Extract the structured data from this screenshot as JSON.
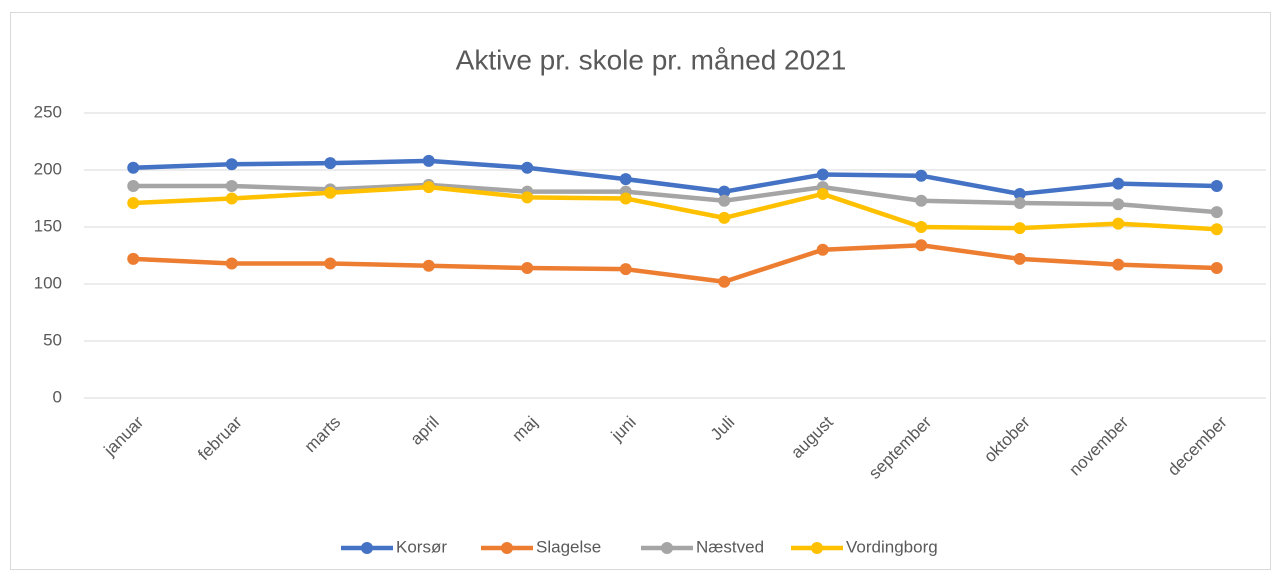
{
  "chart_data": {
    "type": "line",
    "title": "Aktive pr. skole pr. måned 2021",
    "categories": [
      "januar",
      "februar",
      "marts",
      "april",
      "maj",
      "juni",
      "Juli",
      "august",
      "september",
      "oktober",
      "november",
      "december"
    ],
    "series": [
      {
        "name": "Korsør",
        "color": "#4472c4",
        "values": [
          202,
          205,
          206,
          208,
          202,
          192,
          181,
          196,
          195,
          179,
          188,
          186
        ]
      },
      {
        "name": "Slagelse",
        "color": "#ed7d31",
        "values": [
          122,
          118,
          118,
          116,
          114,
          113,
          102,
          130,
          134,
          122,
          117,
          114
        ]
      },
      {
        "name": "Næstved",
        "color": "#a5a5a5",
        "values": [
          186,
          186,
          183,
          187,
          181,
          181,
          173,
          185,
          173,
          171,
          170,
          163
        ]
      },
      {
        "name": "Vordingborg",
        "color": "#ffc000",
        "values": [
          171,
          175,
          180,
          185,
          176,
          175,
          158,
          179,
          150,
          149,
          153,
          148
        ]
      }
    ],
    "ylim": [
      0,
      250
    ],
    "yticks": [
      0,
      50,
      100,
      150,
      200,
      250
    ],
    "grid": true,
    "legend": "bottom"
  }
}
